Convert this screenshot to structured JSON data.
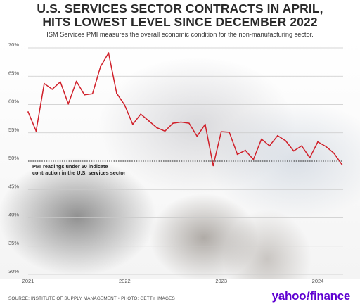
{
  "chart_data": {
    "type": "line",
    "title": "U.S. SERVICES SECTOR CONTRACTS IN APRIL, HITS LOWEST LEVEL SINCE DECEMBER 2022",
    "title_lines": [
      "U.S. SERVICES SECTOR CONTRACTS IN APRIL,",
      "HITS LOWEST LEVEL SINCE DECEMBER 2022"
    ],
    "subtitle": "ISM Services PMI measures the overall economic condition for the non-manufacturing sector.",
    "xlabel": "",
    "ylabel": "",
    "ylim": [
      30,
      70
    ],
    "yticks": [
      30,
      35,
      40,
      45,
      50,
      55,
      60,
      65,
      70
    ],
    "ytick_labels": [
      "30%",
      "35%",
      "40%",
      "45%",
      "50%",
      "55%",
      "60%",
      "65%",
      "70%"
    ],
    "xticks": [
      "2021",
      "2022",
      "2023",
      "2024"
    ],
    "grid": true,
    "reference_line": {
      "value": 50,
      "label_lines": [
        "PMI readings under 50 indicate",
        "contraction in the U.S. services sector"
      ]
    },
    "line_color": "#d0202a",
    "series": [
      {
        "x": [
          "2021-01",
          "2021-02",
          "2021-03",
          "2021-04",
          "2021-05",
          "2021-06",
          "2021-07",
          "2021-08",
          "2021-09",
          "2021-10",
          "2021-11",
          "2021-12",
          "2022-01",
          "2022-02",
          "2022-03",
          "2022-04",
          "2022-05",
          "2022-06",
          "2022-07",
          "2022-08",
          "2022-09",
          "2022-10",
          "2022-11",
          "2022-12",
          "2023-01",
          "2023-02",
          "2023-03",
          "2023-04",
          "2023-05",
          "2023-06",
          "2023-07",
          "2023-08",
          "2023-09",
          "2023-10",
          "2023-11",
          "2023-12",
          "2024-01",
          "2024-02",
          "2024-03",
          "2024-04"
        ],
        "values": [
          58.7,
          55.3,
          63.7,
          62.7,
          64.0,
          60.1,
          64.1,
          61.7,
          61.9,
          66.7,
          69.1,
          62.0,
          59.9,
          56.5,
          58.3,
          57.1,
          55.9,
          55.3,
          56.7,
          56.9,
          56.7,
          54.4,
          56.5,
          49.2,
          55.2,
          55.1,
          51.2,
          51.9,
          50.3,
          53.9,
          52.7,
          54.5,
          53.6,
          51.8,
          52.7,
          50.6,
          53.4,
          52.6,
          51.4,
          49.4
        ]
      }
    ]
  },
  "footer": {
    "source": "SOURCE: INSTITUTE OF SUPPLY MANAGEMENT • PHOTO: GETTY IMAGES",
    "logo_text": "yahoo",
    "logo_slash": "!",
    "logo_suffix": "finance"
  }
}
